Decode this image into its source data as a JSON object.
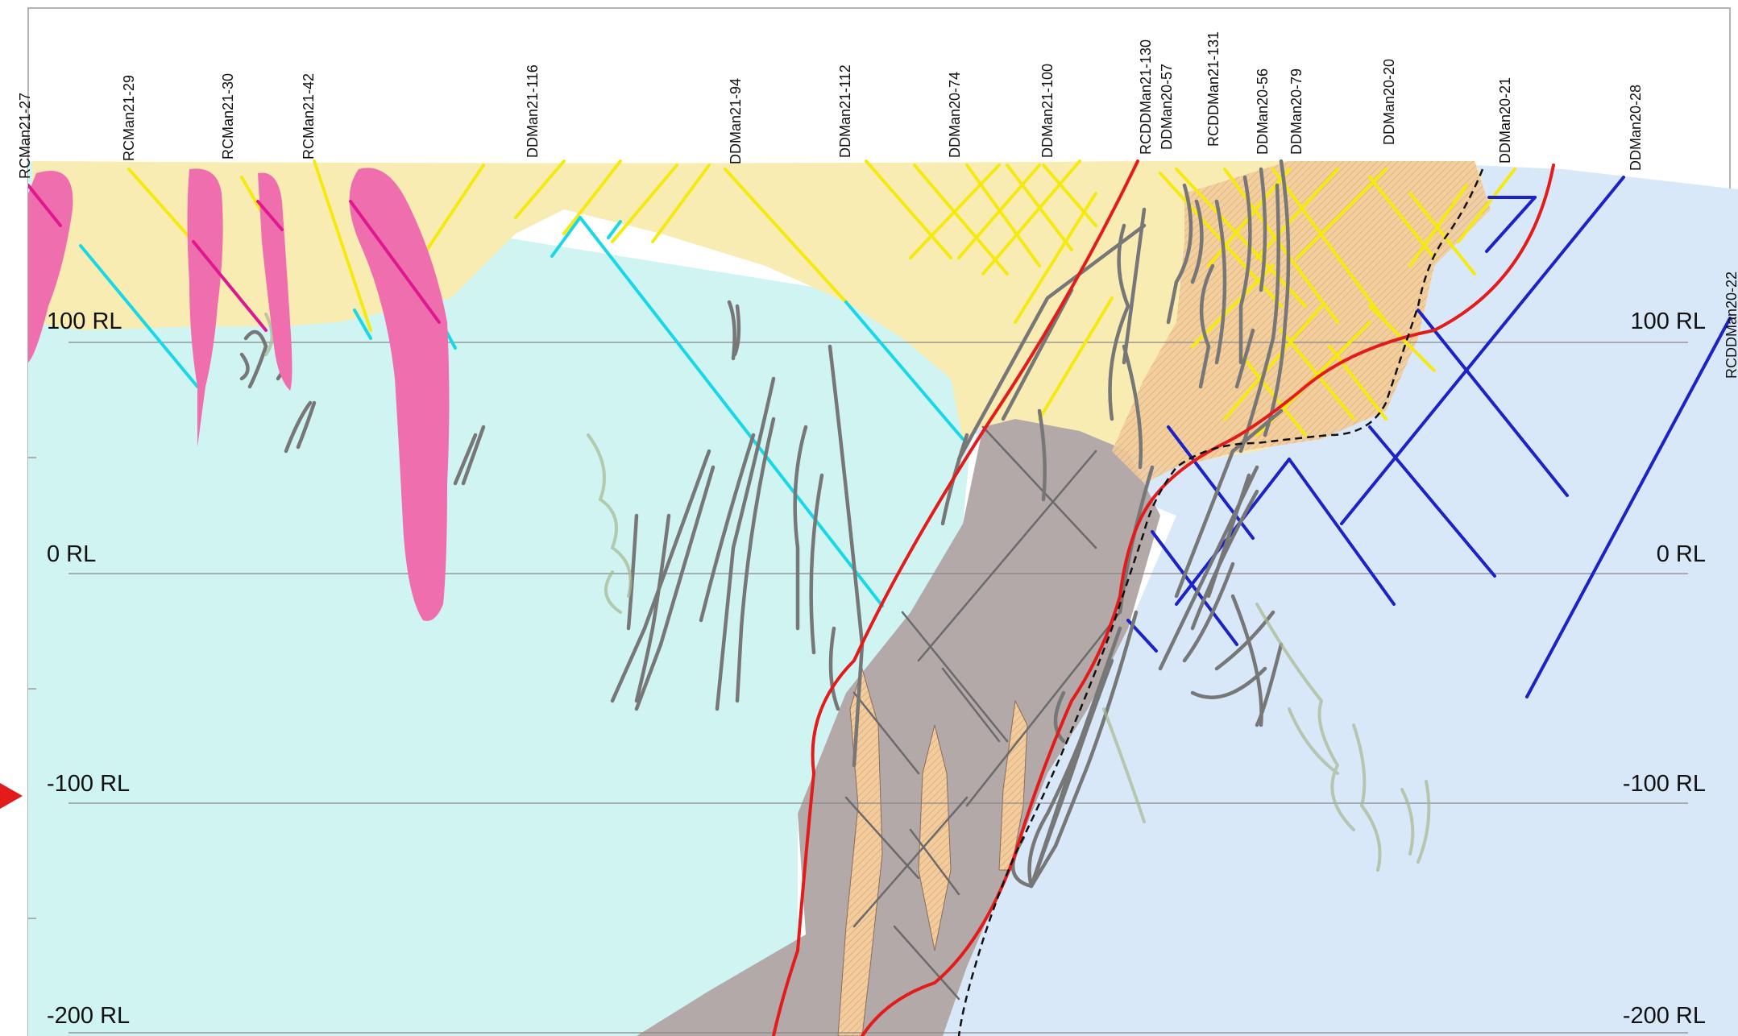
{
  "section": {
    "rl_levels": [
      {
        "label": "100 RL",
        "value": 100
      },
      {
        "label": "0 RL",
        "value": 0
      },
      {
        "label": "-100 RL",
        "value": -100
      },
      {
        "label": "-200 RL",
        "value": -200
      }
    ],
    "drillholes": [
      "RCMan21-27",
      "RCMan21-29",
      "RCMan21-30",
      "RCMan21-42",
      "DDMan21-116",
      "DDMan21-94",
      "DDMan21-112",
      "DDMan20-74",
      "DDMan21-100",
      "RCDDMan21-130",
      "DDMan20-57",
      "RCDDMan21-131",
      "DDMan20-56",
      "DDMan20-79",
      "DDMan20-20",
      "DDMan20-21",
      "DDMan20-28",
      "RCDDMan20-22"
    ],
    "colors": {
      "oxide_zone": "#f8ecb2",
      "west_block": "#d0f4f2",
      "east_block": "#d8e8f8",
      "shear_zone": "#b3a9a9",
      "altered_zone": "#f2cc9c",
      "intrusive": "#ef6fae",
      "fault": "#e31b1b",
      "drillhole_oxide": "#f5ea10",
      "drillhole_west": "#18d8e8",
      "drillhole_east": "#1a22c8",
      "vein": "#777777",
      "contact_dashed": "#111111",
      "pointer_arrow": "#e31b1b"
    }
  }
}
